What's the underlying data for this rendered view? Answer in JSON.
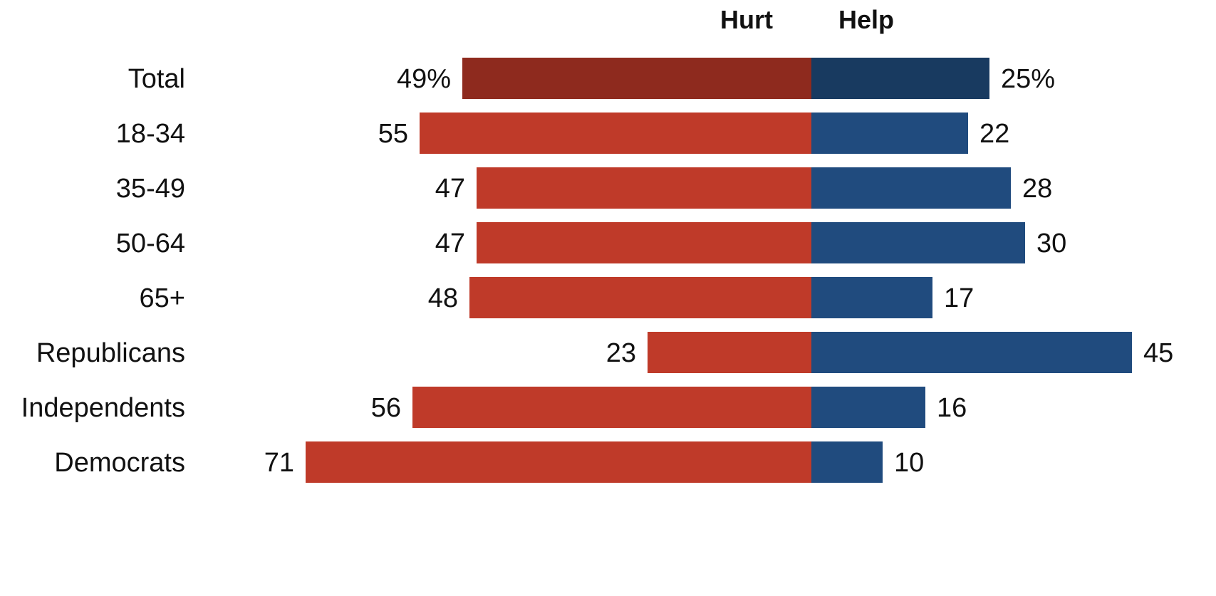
{
  "chart_data": {
    "type": "bar",
    "orientation": "horizontal-diverging",
    "title": "",
    "headers": {
      "left": "Hurt",
      "right": "Help"
    },
    "categories": [
      "Total",
      "18-34",
      "35-49",
      "50-64",
      "65+",
      "Republicans",
      "Independents",
      "Democrats"
    ],
    "groups": [
      {
        "categories": [
          "Total"
        ]
      },
      {
        "categories": [
          "18-34",
          "35-49",
          "50-64",
          "65+"
        ]
      },
      {
        "categories": [
          "Republicans",
          "Independents",
          "Democrats"
        ]
      }
    ],
    "series": [
      {
        "name": "Hurt",
        "values": [
          49,
          55,
          47,
          47,
          48,
          23,
          56,
          71
        ]
      },
      {
        "name": "Help",
        "values": [
          25,
          22,
          28,
          30,
          17,
          45,
          16,
          10
        ]
      }
    ],
    "value_labels": {
      "Hurt": [
        "49%",
        "55",
        "47",
        "47",
        "48",
        "23",
        "56",
        "71"
      ],
      "Help": [
        "25%",
        "22",
        "28",
        "30",
        "17",
        "45",
        "16",
        "10"
      ]
    },
    "xlabel": "",
    "ylabel": "",
    "grid": false,
    "legend": "none",
    "colors": {
      "hurt": "#bf3a29",
      "hurt_total": "#8e2a1e",
      "help": "#204b7e",
      "help_total": "#183a60"
    }
  }
}
